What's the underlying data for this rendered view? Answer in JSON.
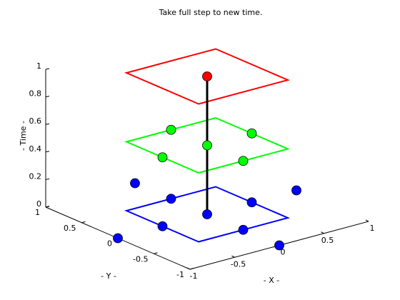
{
  "chart_data": {
    "type": "scatter3d",
    "title": "Take full step to new time.",
    "xlabel": "- X -",
    "ylabel": "- Y -",
    "zlabel": "- Time -",
    "xlim": [
      -1,
      1
    ],
    "ylim": [
      -1,
      1
    ],
    "zlim": [
      0,
      1
    ],
    "xticks": [
      -1,
      -0.5,
      0,
      0.5,
      1
    ],
    "yticks": [
      -1,
      -0.5,
      0,
      0.5,
      1
    ],
    "zticks": [
      0,
      0.2,
      0.4,
      0.6,
      0.8,
      1
    ],
    "squares": [
      {
        "color": "#0000ff",
        "z": 0,
        "x": [
          -0.5,
          0.5,
          0.5,
          -0.5
        ],
        "y": [
          -0.5,
          -0.5,
          0.5,
          0.5
        ]
      },
      {
        "color": "#00ff00",
        "z": 0.5,
        "x": [
          -0.5,
          0.5,
          0.5,
          -0.5
        ],
        "y": [
          -0.5,
          -0.5,
          0.5,
          0.5
        ]
      },
      {
        "color": "#ff0000",
        "z": 1,
        "x": [
          -0.5,
          0.5,
          0.5,
          -0.5
        ],
        "y": [
          -0.5,
          -0.5,
          0.5,
          0.5
        ]
      }
    ],
    "line": {
      "color": "#000000",
      "x": [
        0,
        0
      ],
      "y": [
        0,
        0
      ],
      "z": [
        0,
        1
      ]
    },
    "series": [
      {
        "color": "#0000ff",
        "x": [
          0,
          0.5,
          -0.5,
          0,
          0,
          0,
          1,
          -1,
          0
        ],
        "y": [
          0,
          0,
          0,
          0.5,
          -0.5,
          1,
          0,
          0,
          -1
        ],
        "z": [
          0,
          0,
          0,
          0,
          0,
          0,
          0,
          0,
          0
        ]
      },
      {
        "color": "#00ff00",
        "x": [
          0,
          0.5,
          -0.5,
          0,
          0
        ],
        "y": [
          0,
          0,
          0,
          0.5,
          -0.5
        ],
        "z": [
          0.5,
          0.5,
          0.5,
          0.5,
          0.5
        ]
      },
      {
        "color": "#ff0000",
        "x": [
          0
        ],
        "y": [
          0
        ],
        "z": [
          1
        ]
      }
    ]
  }
}
